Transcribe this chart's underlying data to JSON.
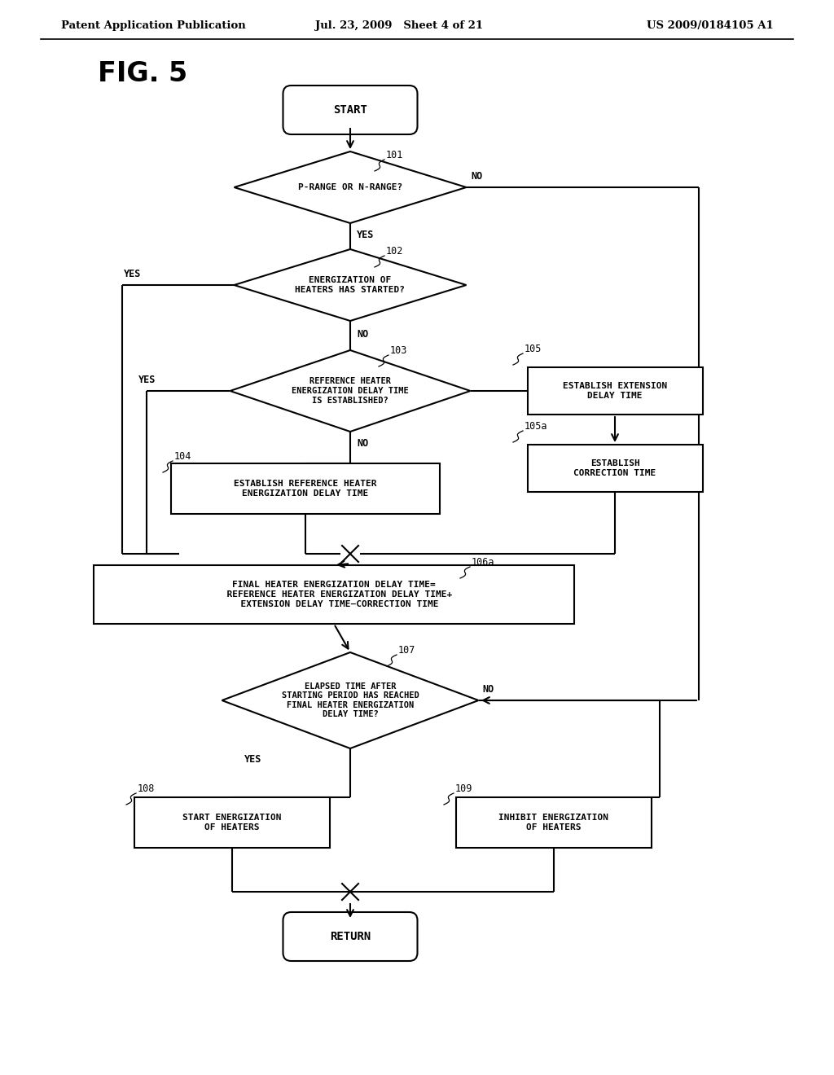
{
  "bg_color": "#ffffff",
  "header_left": "Patent Application Publication",
  "header_mid": "Jul. 23, 2009   Sheet 4 of 21",
  "header_right": "US 2009/0184105 A1",
  "fig_label": "FIG. 5"
}
